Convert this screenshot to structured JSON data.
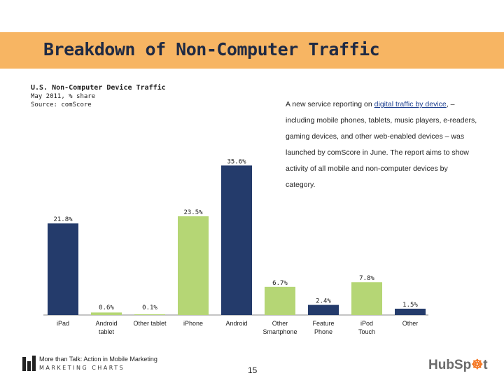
{
  "slide": {
    "title": "Breakdown of Non-Computer Traffic",
    "page_number": "15"
  },
  "chart_header": {
    "title": "U.S. Non-Computer Device Traffic",
    "subtitle": "May 2011, % share",
    "source": "Source: comScore"
  },
  "description": {
    "lead": "A  new service reporting on ",
    "link": "digital traffic by device",
    "rest": ", – including mobile phones, tablets, music players, e-readers, gaming devices, and other web-enabled devices – was launched by comScore in June. The report aims to show activity of all mobile and non-computer devices by category."
  },
  "footer": {
    "brand_line1": "More than Talk: Action in Mobile Marketing",
    "brand_line2": "MARKETING CHARTS",
    "logo_left": "HubSp",
    "logo_mark": "☸",
    "logo_right": "t"
  },
  "colors": {
    "navy": "#243b6b",
    "green": "#b5d675",
    "title_band": "#f7b563"
  },
  "chart_data": {
    "type": "bar",
    "title": "U.S. Non-Computer Device Traffic",
    "subtitle": "May 2011, % share",
    "xlabel": "",
    "ylabel": "",
    "ylim": [
      0,
      40
    ],
    "grid": false,
    "categories": [
      "iPad",
      "Android tablet",
      "Other tablet",
      "iPhone",
      "Android",
      "Other Smartphone",
      "Feature Phone",
      "iPod Touch",
      "Other"
    ],
    "values": [
      21.8,
      0.6,
      0.1,
      23.5,
      35.6,
      6.7,
      2.4,
      7.8,
      1.5
    ],
    "labels": [
      "21.8%",
      "0.6%",
      "0.1%",
      "23.5%",
      "35.6%",
      "6.7%",
      "2.4%",
      "7.8%",
      "1.5%"
    ],
    "bar_colors": [
      "navy",
      "green",
      "green",
      "green",
      "navy",
      "green",
      "navy",
      "green",
      "navy"
    ]
  }
}
